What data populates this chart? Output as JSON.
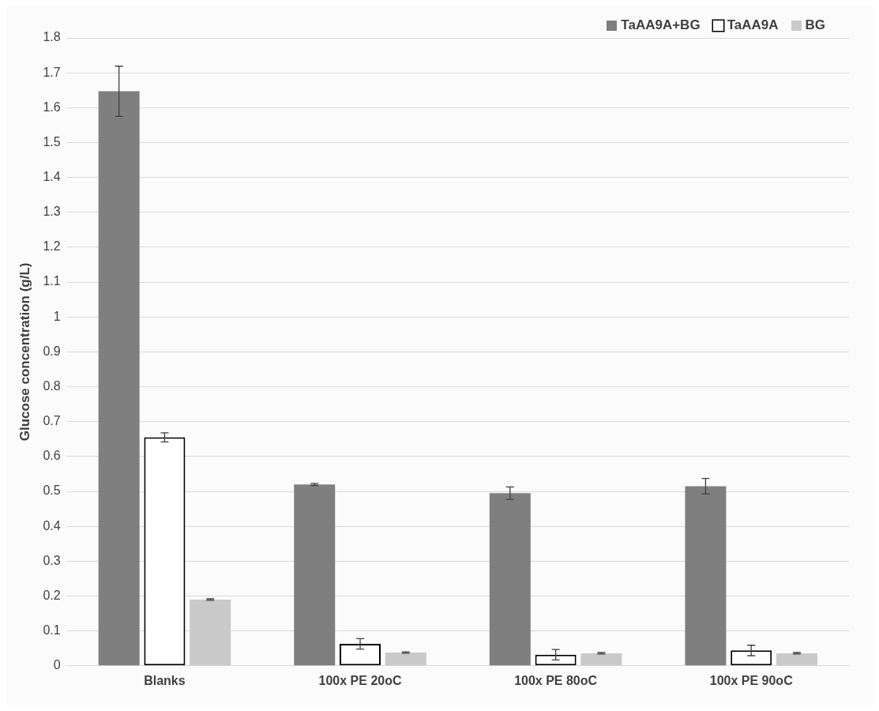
{
  "chart_data": {
    "type": "bar",
    "ylabel": "Glucose concentration (g/L)",
    "categories": [
      "Blanks",
      "100x PE 20oC",
      "100x PE 80oC",
      "100x PE 90oC"
    ],
    "series": [
      {
        "name": "TaAA9A+BG",
        "color": "#7f7f7f",
        "values": [
          1.647,
          0.52,
          0.495,
          0.515
        ],
        "errors": [
          0.072,
          0.003,
          0.018,
          0.022
        ]
      },
      {
        "name": "TaAA9A",
        "color": "#ffffff",
        "values": [
          0.655,
          0.063,
          0.032,
          0.044
        ],
        "errors": [
          0.013,
          0.015,
          0.015,
          0.015
        ]
      },
      {
        "name": "BG",
        "color": "#c9c9c9",
        "values": [
          0.19,
          0.038,
          0.036,
          0.036
        ],
        "errors": [
          0.002,
          0.002,
          0.002,
          0.002
        ]
      }
    ],
    "ylim": [
      0,
      1.8
    ],
    "yticks": [
      0,
      0.1,
      0.2,
      0.3,
      0.4,
      0.5,
      0.6,
      0.7,
      0.8,
      0.9,
      1,
      1.1,
      1.2,
      1.3,
      1.4,
      1.5,
      1.6,
      1.7,
      1.8
    ],
    "grid": "y",
    "legend": "top right"
  }
}
